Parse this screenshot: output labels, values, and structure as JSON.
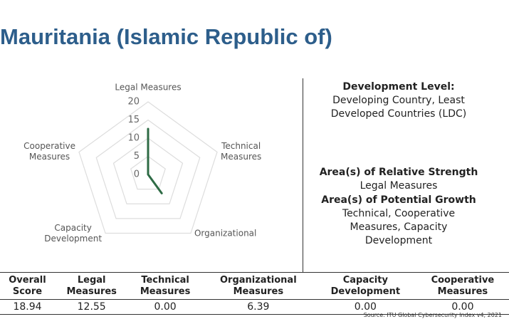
{
  "title": "Mauritania (Islamic Republic of)",
  "chart_data": {
    "type": "radar",
    "categories": [
      "Legal Measures",
      "Technical\nMeasures",
      "Organizational",
      "Capacity\nDevelopment",
      "Cooperative\nMeasures"
    ],
    "values": [
      12.55,
      0,
      6.39,
      0,
      0
    ],
    "color": "#2e6b45",
    "ylim": [
      0,
      20
    ],
    "yticks": [
      0,
      5,
      10,
      15,
      20
    ]
  },
  "info": {
    "development_level": {
      "heading": "Development Level:",
      "text": "Developing Country, Least Developed Countries (LDC)"
    },
    "strength": {
      "heading": "Area(s) of Relative Strength",
      "text": "Legal Measures"
    },
    "growth": {
      "heading": "Area(s) of Potential Growth",
      "text": "Technical, Cooperative Measures, Capacity Development"
    }
  },
  "table": {
    "headers": [
      "Overall\nScore",
      "Legal\nMeasures",
      "Technical\nMeasures",
      "Organizational\nMeasures",
      "Capacity\nDevelopment",
      "Cooperative\nMeasures"
    ],
    "rows": [
      [
        "18.94",
        "12.55",
        "0.00",
        "6.39",
        "0.00",
        "0.00"
      ]
    ]
  },
  "source": "Source: ITU Global Cybersecurity Index v4, 2021"
}
